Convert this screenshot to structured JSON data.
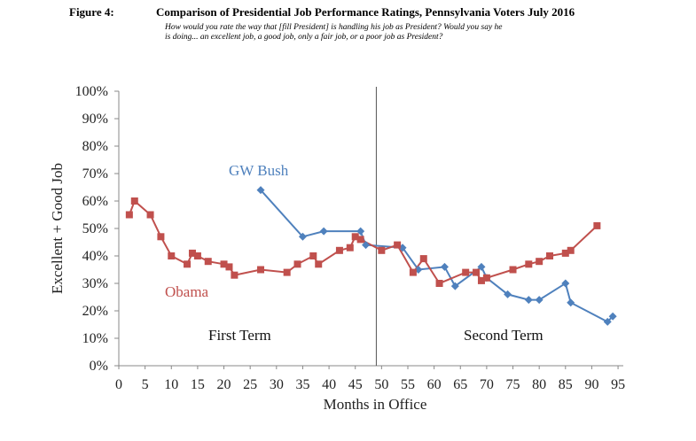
{
  "figure": {
    "label": "Figure 4:",
    "title": "Comparison of Presidential Job Performance Ratings, Pennsylvania Voters July 2016",
    "question_line1": "How would you rate the way that [fill President] is handling his job as President? Would you say he",
    "question_line2": "is doing... an excellent job, a good job, only a fair job, or a poor job as President?"
  },
  "chart_data": {
    "type": "line",
    "title": "Comparison of Presidential Job Performance Ratings, Pennsylvania Voters July 2016",
    "xlabel": "Months in Office",
    "ylabel": "Excellent + Good Job",
    "xlim": [
      0,
      96
    ],
    "ylim": [
      0,
      100
    ],
    "x_ticks": [
      0,
      5,
      10,
      15,
      20,
      25,
      30,
      35,
      40,
      45,
      50,
      55,
      60,
      65,
      70,
      75,
      80,
      85,
      90,
      95
    ],
    "y_ticks": [
      "0%",
      "10%",
      "20%",
      "30%",
      "40%",
      "50%",
      "60%",
      "70%",
      "80%",
      "90%",
      "100%"
    ],
    "y_tick_values": [
      0,
      10,
      20,
      30,
      40,
      50,
      60,
      70,
      80,
      90,
      100
    ],
    "divider_x": 49,
    "annotations": [
      "First Term",
      "Second Term"
    ],
    "grid": false,
    "series": [
      {
        "name": "GW Bush",
        "color": "#4f81bd",
        "marker": "diamond",
        "points": [
          [
            27,
            64
          ],
          [
            35,
            47
          ],
          [
            39,
            49
          ],
          [
            46,
            49
          ],
          [
            47,
            44
          ],
          [
            54,
            43
          ],
          [
            57,
            35
          ],
          [
            62,
            36
          ],
          [
            64,
            29
          ],
          [
            69,
            36
          ],
          [
            70,
            32
          ],
          [
            74,
            26
          ],
          [
            78,
            24
          ],
          [
            80,
            24
          ],
          [
            85,
            30
          ],
          [
            86,
            23
          ],
          [
            93,
            16
          ],
          [
            94,
            18
          ]
        ]
      },
      {
        "name": "Obama",
        "color": "#c0504d",
        "marker": "square",
        "points": [
          [
            2,
            55
          ],
          [
            3,
            60
          ],
          [
            6,
            55
          ],
          [
            8,
            47
          ],
          [
            10,
            40
          ],
          [
            13,
            37
          ],
          [
            14,
            41
          ],
          [
            15,
            40
          ],
          [
            17,
            38
          ],
          [
            20,
            37
          ],
          [
            21,
            36
          ],
          [
            22,
            33
          ],
          [
            27,
            35
          ],
          [
            32,
            34
          ],
          [
            34,
            37
          ],
          [
            37,
            40
          ],
          [
            38,
            37
          ],
          [
            42,
            42
          ],
          [
            44,
            43
          ],
          [
            45,
            47
          ],
          [
            46,
            46
          ],
          [
            50,
            42
          ],
          [
            53,
            44
          ],
          [
            56,
            34
          ],
          [
            58,
            39
          ],
          [
            61,
            30
          ],
          [
            66,
            34
          ],
          [
            68,
            34
          ],
          [
            69,
            31
          ],
          [
            70,
            32
          ],
          [
            75,
            35
          ],
          [
            78,
            37
          ],
          [
            80,
            38
          ],
          [
            82,
            40
          ],
          [
            85,
            41
          ],
          [
            86,
            42
          ],
          [
            91,
            51
          ]
        ]
      }
    ]
  }
}
